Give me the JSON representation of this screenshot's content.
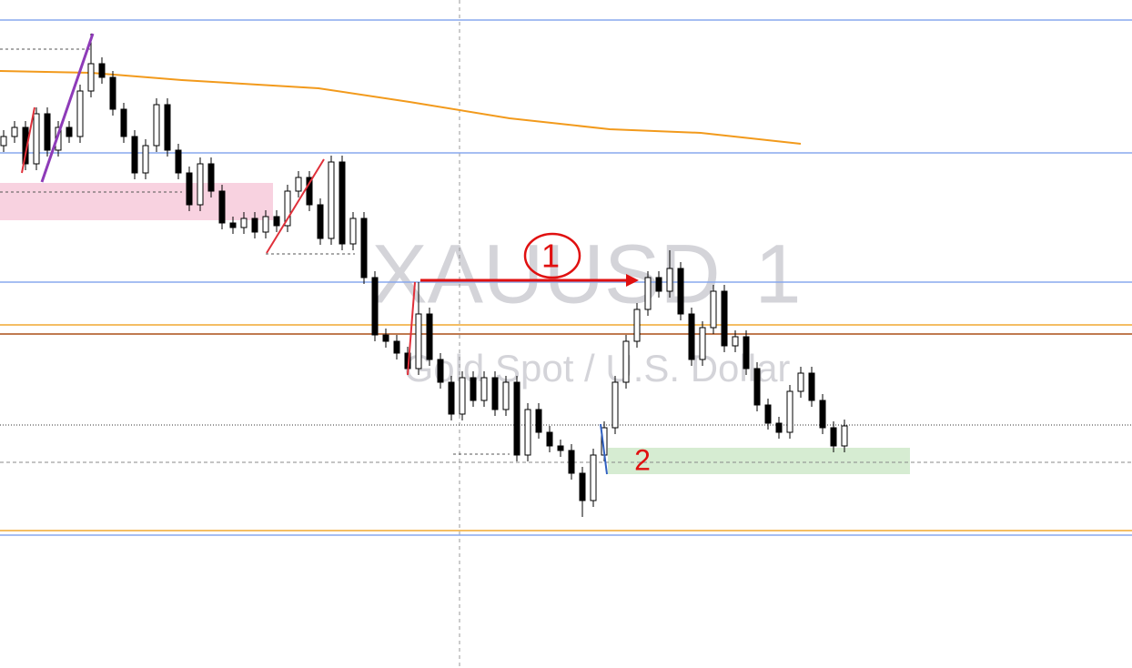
{
  "chart_data": {
    "type": "candlestick",
    "watermark": {
      "symbol": "XAUUSD",
      "timeframe": "1",
      "description": "Gold Spot / U.S. Dollar"
    },
    "annotations": [
      "1",
      "2"
    ],
    "ylim": [
      0,
      734
    ],
    "up_color": "#ffffff",
    "down_color": "#000000",
    "border_color": "#000000",
    "open": [
      574,
      584,
      594,
      554,
      609,
      569,
      594,
      584,
      634,
      664,
      649,
      614,
      584,
      544,
      574,
      619,
      569,
      544,
      509,
      554,
      524,
      489,
      484,
      494,
      479,
      496,
      486,
      524,
      539,
      509,
      472,
      556,
      466,
      494,
      429,
      366,
      359,
      346,
      329,
      389,
      339,
      314,
      279,
      319,
      294,
      319,
      284,
      314,
      234,
      284,
      259,
      244,
      239,
      214,
      184,
      234,
      264,
      314,
      359,
      394,
      429,
      414,
      439,
      389,
      339,
      374,
      414,
      354,
      364,
      329,
      289,
      269,
      259,
      304,
      324,
      294,
      264,
      244
    ],
    "high": [
      591,
      601,
      601,
      616,
      616,
      601,
      601,
      641,
      697,
      671,
      656,
      621,
      591,
      581,
      626,
      626,
      576,
      551,
      561,
      561,
      531,
      496,
      501,
      501,
      503,
      503,
      531,
      546,
      546,
      516,
      563,
      563,
      501,
      501,
      436,
      373,
      366,
      353,
      424,
      396,
      346,
      321,
      326,
      326,
      326,
      326,
      321,
      321,
      291,
      291,
      266,
      251,
      246,
      221,
      241,
      271,
      321,
      366,
      401,
      436,
      436,
      459,
      446,
      396,
      381,
      421,
      421,
      371,
      371,
      336,
      296,
      276,
      311,
      331,
      331,
      301,
      271,
      273
    ],
    "low": [
      567,
      577,
      547,
      547,
      562,
      562,
      577,
      577,
      627,
      642,
      607,
      577,
      537,
      537,
      567,
      562,
      537,
      502,
      502,
      517,
      482,
      477,
      477,
      472,
      472,
      479,
      479,
      517,
      502,
      465,
      465,
      459,
      459,
      422,
      359,
      352,
      339,
      322,
      322,
      332,
      307,
      272,
      272,
      287,
      287,
      277,
      277,
      227,
      227,
      252,
      237,
      232,
      207,
      166,
      177,
      227,
      257,
      307,
      352,
      387,
      407,
      407,
      382,
      332,
      332,
      367,
      347,
      347,
      322,
      282,
      262,
      252,
      252,
      297,
      287,
      257,
      237,
      237
    ],
    "close": [
      584,
      594,
      554,
      609,
      569,
      594,
      584,
      634,
      664,
      649,
      614,
      584,
      544,
      574,
      619,
      569,
      544,
      509,
      554,
      524,
      489,
      484,
      494,
      479,
      496,
      486,
      524,
      539,
      509,
      472,
      556,
      466,
      494,
      429,
      366,
      359,
      346,
      329,
      389,
      339,
      314,
      279,
      319,
      294,
      319,
      284,
      314,
      234,
      284,
      259,
      244,
      239,
      214,
      184,
      234,
      264,
      314,
      359,
      394,
      429,
      414,
      439,
      389,
      339,
      374,
      414,
      354,
      364,
      329,
      289,
      269,
      259,
      304,
      324,
      294,
      264,
      244,
      266
    ]
  }
}
